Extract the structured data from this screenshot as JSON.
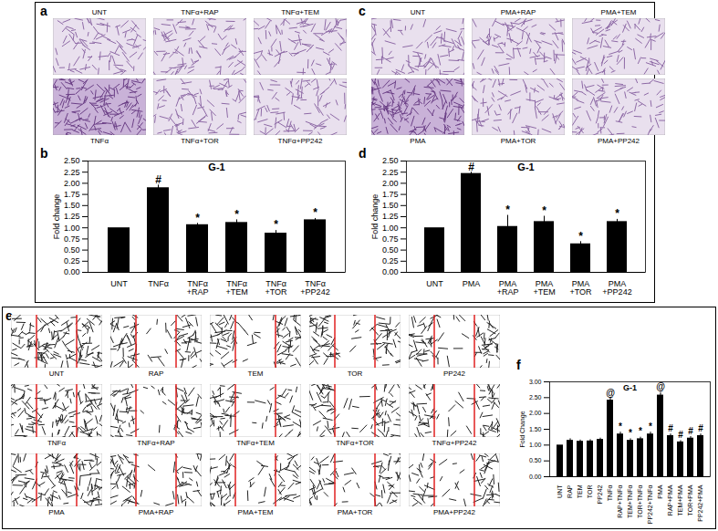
{
  "image_panels": [
    {
      "panel_label": "a",
      "labels": [
        "UNT",
        "TNFα+RAP",
        "TNFα+TEM",
        "TNFα",
        "TNFα+TOR",
        "TNFα+PP242"
      ]
    },
    {
      "panel_label": "c",
      "labels": [
        "UNT",
        "PMA+RAP",
        "PMA+TEM",
        "PMA",
        "PMA+TOR",
        "PMA+PP242"
      ]
    },
    {
      "panel_label": "e",
      "labels": [
        "UNT",
        "RAP",
        "TEM",
        "TOR",
        "PP242",
        "TNFα",
        "TNFα+RAP",
        "TNFα+TEM",
        "TNFα+TOR",
        "TNFα+PP242",
        "PMA",
        "PMA+RAP",
        "PMA+TEM",
        "PMA+TOR",
        "PMA+PP242"
      ]
    }
  ],
  "chart_data": [
    {
      "type": "bar",
      "panel_label": "b",
      "title": "G-1",
      "y_label": "Fold change",
      "categories": [
        "UNT",
        "TNFα",
        "TNFα+RAP",
        "TNFα+TEM",
        "TNFα+TOR",
        "TNFα+PP242"
      ],
      "values": [
        1.0,
        1.9,
        1.07,
        1.12,
        0.88,
        1.18
      ],
      "errors": [
        0,
        0.06,
        0.03,
        0.06,
        0.06,
        0.03
      ],
      "significance": [
        null,
        "#",
        "*",
        "*",
        "*",
        "*"
      ],
      "color": "#000000",
      "ylim": [
        0,
        2.5
      ],
      "yticks": [
        {
          "value": 0,
          "label": "0.00"
        },
        {
          "value": 0.25,
          "label": "0.25"
        },
        {
          "value": 0.5,
          "label": "0.50"
        },
        {
          "value": 0.75,
          "label": "0.75"
        },
        {
          "value": 1,
          "label": "1.00"
        },
        {
          "value": 1.25,
          "label": "1.25"
        },
        {
          "value": 1.5,
          "label": "1.50"
        },
        {
          "value": 1.75,
          "label": "1.75"
        },
        {
          "value": 2,
          "label": "2.00"
        },
        {
          "value": 2.25,
          "label": "2.25"
        },
        {
          "value": 2.5,
          "label": "2.50"
        }
      ]
    },
    {
      "type": "bar",
      "panel_label": "d",
      "title": "G-1",
      "y_label": "Fold change",
      "categories": [
        "UNT",
        "PMA",
        "PMA+RAP",
        "PMA+TEM",
        "PMA+TOR",
        "PMA+PP242"
      ],
      "values": [
        1.0,
        2.22,
        1.03,
        1.14,
        0.64,
        1.14
      ],
      "errors": [
        0,
        0.03,
        0.25,
        0.12,
        0.05,
        0.05
      ],
      "significance": [
        null,
        "#",
        "*",
        "*",
        "*",
        "*"
      ],
      "color": "#000000",
      "ylim": [
        0,
        2.5
      ],
      "yticks": [
        {
          "value": 0,
          "label": "0.00"
        },
        {
          "value": 0.25,
          "label": "0.25"
        },
        {
          "value": 0.5,
          "label": "0.50"
        },
        {
          "value": 0.75,
          "label": "0.75"
        },
        {
          "value": 1,
          "label": "1.00"
        },
        {
          "value": 1.25,
          "label": "1.25"
        },
        {
          "value": 1.5,
          "label": "1.50"
        },
        {
          "value": 1.75,
          "label": "1.75"
        },
        {
          "value": 2,
          "label": "2.00"
        },
        {
          "value": 2.25,
          "label": "2.25"
        },
        {
          "value": 2.5,
          "label": "2.50"
        }
      ]
    },
    {
      "type": "bar",
      "panel_label": "f",
      "title": "G-1",
      "y_label": "Fold Change",
      "categories": [
        "UNT",
        "RAP",
        "TEM",
        "TOR",
        "PP242",
        "TNFα",
        "RAP+TNFα",
        "TEM+TNFα",
        "TOR+TNFα",
        "PP242+TNFα",
        "PMA",
        "RAP+PMA",
        "TEM+PMA",
        "TOR+PMA",
        "PP242+PMA"
      ],
      "values": [
        1.0,
        1.15,
        1.12,
        1.13,
        1.18,
        2.42,
        1.35,
        1.15,
        1.2,
        1.35,
        2.58,
        1.3,
        1.1,
        1.22,
        1.3
      ],
      "errors": [
        0,
        0.05,
        0.04,
        0.04,
        0.04,
        0.06,
        0.06,
        0.05,
        0.05,
        0.06,
        0.08,
        0.05,
        0.04,
        0.05,
        0.05
      ],
      "significance": [
        null,
        null,
        null,
        null,
        null,
        "@",
        "*",
        "*",
        "*",
        "*",
        "@",
        "#",
        "#",
        "#",
        "#"
      ],
      "color": "#000000",
      "ylim": [
        0,
        3
      ],
      "yticks": [
        {
          "value": 0,
          "label": "0.00"
        },
        {
          "value": 0.5,
          "label": "0.50"
        },
        {
          "value": 1,
          "label": "1.00"
        },
        {
          "value": 1.5,
          "label": "1.50"
        },
        {
          "value": 2,
          "label": "2.00"
        },
        {
          "value": 2.5,
          "label": "2.50"
        },
        {
          "value": 3,
          "label": "3.00"
        }
      ]
    }
  ]
}
